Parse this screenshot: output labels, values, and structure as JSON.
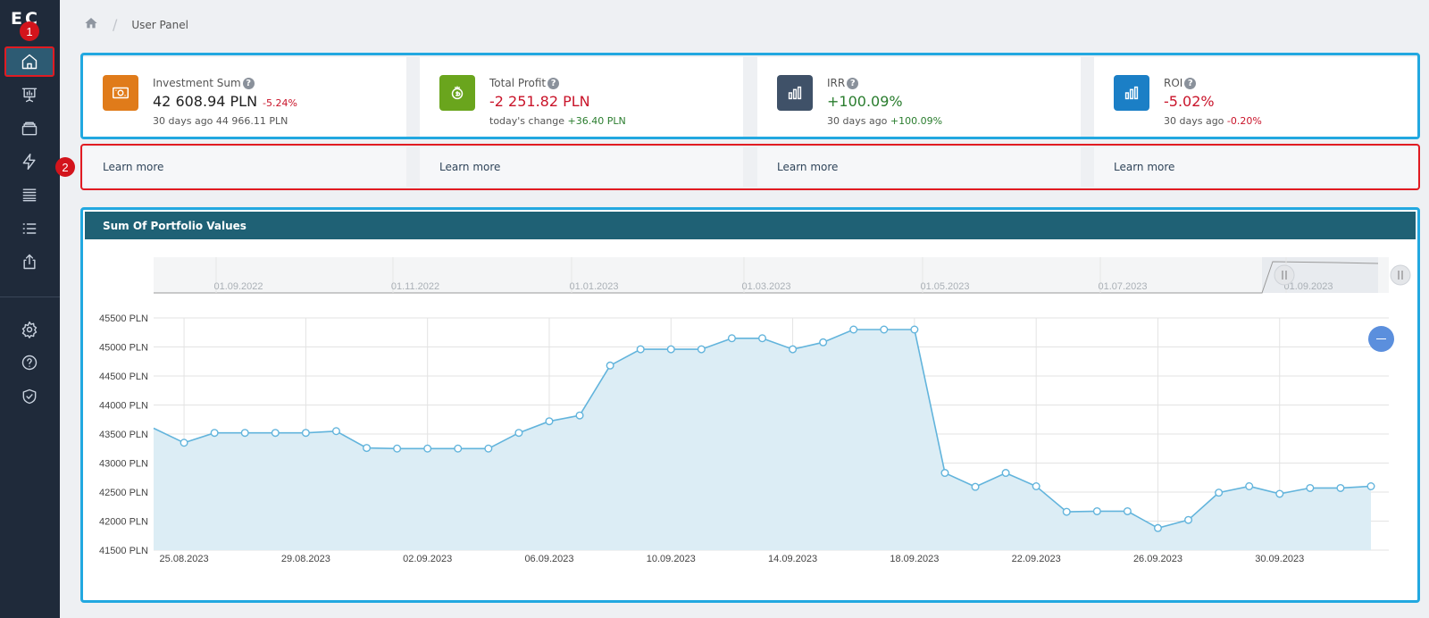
{
  "app": {
    "logo": "EC"
  },
  "sidebar": {
    "items": [
      {
        "name": "home",
        "icon": "home-icon",
        "active": true
      },
      {
        "name": "presentation",
        "icon": "presentation-chart-icon"
      },
      {
        "name": "wallet",
        "icon": "wallet-icon"
      },
      {
        "name": "lightning",
        "icon": "lightning-icon"
      },
      {
        "name": "stack",
        "icon": "stack-list-icon"
      },
      {
        "name": "list",
        "icon": "bullet-list-icon"
      },
      {
        "name": "share",
        "icon": "share-upload-icon"
      },
      {
        "name": "settings",
        "icon": "gear-icon"
      },
      {
        "name": "help",
        "icon": "question-icon"
      },
      {
        "name": "security",
        "icon": "shield-check-icon"
      }
    ]
  },
  "badges": {
    "step1": "1",
    "step2": "2"
  },
  "breadcrumb": {
    "current": "User Panel"
  },
  "cards": [
    {
      "label": "Investment Sum",
      "value": "42 608.94 PLN",
      "delta": "-5.24%",
      "sub_prefix": "30 days ago",
      "sub_value": "44 966.11 PLN",
      "learn": "Learn more",
      "icon_color": "#e07b1a"
    },
    {
      "label": "Total Profit",
      "value": "-2 251.82 PLN",
      "delta": "",
      "sub_prefix": "today's change",
      "sub_value": "+36.40 PLN",
      "learn": "Learn more",
      "icon_color": "#6aa51d"
    },
    {
      "label": "IRR",
      "value": "+100.09%",
      "delta": "",
      "sub_prefix": "30 days ago",
      "sub_value": "+100.09%",
      "learn": "Learn more",
      "icon_color": "#3f5168"
    },
    {
      "label": "ROI",
      "value": "-5.02%",
      "delta": "",
      "sub_prefix": "30 days ago",
      "sub_value": "-0.20%",
      "learn": "Learn more",
      "icon_color": "#1b7fc6"
    }
  ],
  "chart_panel": {
    "title": "Sum Of Portfolio Values"
  },
  "chart_data": {
    "type": "area",
    "ylim": [
      41500,
      45500
    ],
    "y_ticks": [
      "45500 PLN",
      "45000 PLN",
      "44500 PLN",
      "44000 PLN",
      "43500 PLN",
      "43000 PLN",
      "42500 PLN",
      "42000 PLN",
      "41500 PLN"
    ],
    "x_ticks": [
      "25.08.2023",
      "29.08.2023",
      "02.09.2023",
      "06.09.2023",
      "10.09.2023",
      "14.09.2023",
      "18.09.2023",
      "22.09.2023",
      "26.09.2023",
      "30.09.2023"
    ],
    "navigator_ticks": [
      "01.09.2022",
      "01.11.2022",
      "01.01.2023",
      "01.03.2023",
      "01.05.2023",
      "01.07.2023",
      "01.09.2023"
    ],
    "series": [
      {
        "x": [
          "24.08.2023",
          "25.08.2023",
          "26.08.2023",
          "27.08.2023",
          "28.08.2023",
          "29.08.2023",
          "30.08.2023",
          "31.08.2023",
          "01.09.2023",
          "02.09.2023",
          "03.09.2023",
          "04.09.2023",
          "05.09.2023",
          "06.09.2023",
          "07.09.2023",
          "08.09.2023",
          "09.09.2023",
          "10.09.2023",
          "11.09.2023",
          "12.09.2023",
          "13.09.2023",
          "14.09.2023",
          "15.09.2023",
          "16.09.2023",
          "17.09.2023",
          "18.09.2023",
          "19.09.2023",
          "20.09.2023",
          "21.09.2023",
          "22.09.2023",
          "23.09.2023",
          "24.09.2023",
          "25.09.2023",
          "26.09.2023",
          "27.09.2023",
          "28.09.2023",
          "29.09.2023",
          "30.09.2023",
          "01.10.2023",
          "02.10.2023",
          "03.10.2023"
        ],
        "values": [
          43600,
          43350,
          43520,
          43520,
          43520,
          43520,
          43550,
          43260,
          43250,
          43250,
          43250,
          43250,
          43520,
          43720,
          43820,
          44680,
          44960,
          44960,
          44960,
          45150,
          45150,
          44960,
          45080,
          45300,
          45300,
          45300,
          42830,
          42590,
          42830,
          42600,
          42160,
          42170,
          42170,
          41880,
          42020,
          42490,
          42600,
          42470,
          42570,
          42570,
          42600
        ]
      }
    ]
  }
}
